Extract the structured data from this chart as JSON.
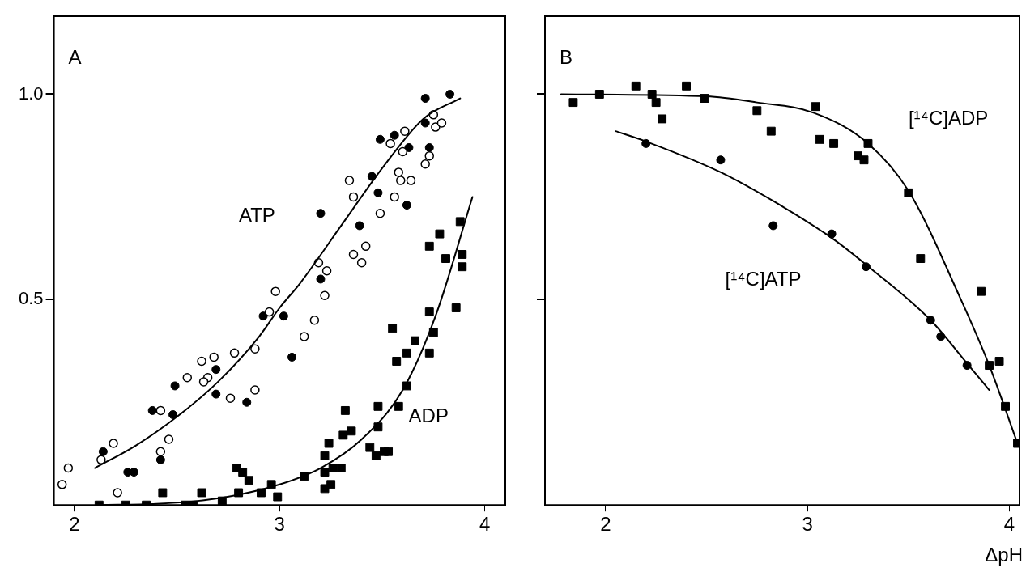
{
  "chart_data": [
    {
      "type": "scatter",
      "title": "A",
      "xlim": [
        1.9,
        4.1
      ],
      "xticks": [
        2,
        3,
        4
      ],
      "ylim": [
        0,
        1.19
      ],
      "yticks": [
        {
          "value": 0.5,
          "label": "0.5"
        },
        {
          "value": 1,
          "label": "1.0"
        }
      ],
      "grid": false,
      "legend": false,
      "annotations": [
        "ATP",
        "ADP"
      ],
      "series": [
        {
          "type": "scatter",
          "marker": "circle",
          "color": "#000000",
          "x": [
            1.97,
            1.94,
            2.13,
            2.19,
            2.21,
            2.42,
            2.42,
            2.46,
            2.55,
            2.62,
            2.65,
            2.63,
            2.68,
            2.78,
            2.76,
            2.88,
            2.88,
            2.95,
            2.98,
            3.12,
            3.17,
            3.75,
            3.76,
            3.79,
            3.73,
            3.71,
            3.61,
            3.54,
            3.6,
            3.58,
            3.59,
            3.64,
            3.56,
            3.34,
            3.36,
            3.49,
            3.36,
            3.4,
            3.42,
            3.19,
            3.23,
            3.22
          ],
          "values": [
            0.09,
            0.05,
            0.11,
            0.15,
            0.03,
            0.23,
            0.13,
            0.16,
            0.31,
            0.35,
            0.31,
            0.3,
            0.36,
            0.37,
            0.26,
            0.38,
            0.28,
            0.47,
            0.52,
            0.41,
            0.45,
            0.95,
            0.92,
            0.93,
            0.85,
            0.83,
            0.91,
            0.88,
            0.86,
            0.81,
            0.79,
            0.79,
            0.75,
            0.79,
            0.75,
            0.71,
            0.61,
            0.59,
            0.63,
            0.59,
            0.57,
            0.51
          ]
        },
        {
          "type": "scatter",
          "marker": "circle",
          "color": "#000000",
          "x": [
            2.14,
            2.26,
            2.29,
            2.38,
            2.42,
            2.49,
            2.48,
            2.69,
            2.69,
            2.84,
            2.92,
            3.02,
            3.06,
            3.71,
            3.83,
            3.71,
            3.73,
            3.56,
            3.49,
            3.63,
            3.45,
            3.48,
            3.62,
            3.2,
            3.39,
            3.2
          ],
          "values": [
            0.13,
            0.08,
            0.08,
            0.23,
            0.11,
            0.29,
            0.22,
            0.33,
            0.27,
            0.25,
            0.46,
            0.46,
            0.36,
            0.99,
            1.0,
            0.93,
            0.87,
            0.9,
            0.89,
            0.87,
            0.8,
            0.76,
            0.73,
            0.71,
            0.68,
            0.55
          ]
        },
        {
          "type": "scatter",
          "marker": "square",
          "color": "#000000",
          "x": [
            2.12,
            2.25,
            2.35,
            2.43,
            2.54,
            2.58,
            2.62,
            2.72,
            2.79,
            2.82,
            2.85,
            2.8,
            2.91,
            2.96,
            2.99,
            3.12,
            3.22,
            3.25,
            3.22,
            3.26,
            3.3,
            3.22,
            3.24,
            3.31,
            3.35,
            3.32,
            3.44,
            3.47,
            3.51,
            3.53,
            3.48,
            3.48,
            3.58,
            3.62,
            3.57,
            3.62,
            3.73,
            3.66,
            3.75,
            3.55,
            3.73,
            3.86,
            3.73,
            3.81,
            3.89,
            3.89,
            3.78,
            3.88
          ],
          "values": [
            0.0,
            0.0,
            0.0,
            0.03,
            0.0,
            0.0,
            0.03,
            0.01,
            0.09,
            0.08,
            0.06,
            0.03,
            0.03,
            0.05,
            0.02,
            0.07,
            0.04,
            0.05,
            0.08,
            0.09,
            0.09,
            0.12,
            0.15,
            0.17,
            0.18,
            0.23,
            0.14,
            0.12,
            0.13,
            0.13,
            0.19,
            0.24,
            0.24,
            0.29,
            0.35,
            0.37,
            0.37,
            0.4,
            0.42,
            0.43,
            0.47,
            0.48,
            0.63,
            0.6,
            0.61,
            0.58,
            0.66,
            0.69
          ]
        },
        {
          "type": "line",
          "marker": "none",
          "color": "#000000",
          "x": [
            2.1,
            2.3,
            2.5,
            2.7,
            2.9,
            3.0,
            3.1,
            3.3,
            3.5,
            3.7,
            3.88
          ],
          "values": [
            0.09,
            0.145,
            0.215,
            0.3,
            0.41,
            0.48,
            0.54,
            0.68,
            0.82,
            0.94,
            0.99
          ]
        },
        {
          "type": "line",
          "marker": "none",
          "color": "#000000",
          "x": [
            2.12,
            2.4,
            2.6,
            2.8,
            3.0,
            3.2,
            3.4,
            3.6,
            3.76,
            3.94
          ],
          "values": [
            0.0,
            0.003,
            0.01,
            0.025,
            0.05,
            0.09,
            0.16,
            0.28,
            0.46,
            0.75
          ]
        }
      ]
    },
    {
      "type": "scatter",
      "title": "B",
      "xlabel": "ΔpH",
      "xlim": [
        1.7,
        4.05
      ],
      "xticks": [
        2,
        3,
        4
      ],
      "ylim": [
        0,
        1.19
      ],
      "yticks": [
        0.5,
        1
      ],
      "tick_labels": "x",
      "grid": false,
      "legend": false,
      "annotations": [
        "[¹⁴C]ADP",
        "[¹⁴C]ATP"
      ],
      "series": [
        {
          "type": "scatter",
          "marker": "square",
          "color": "#000000",
          "x": [
            1.84,
            1.97,
            2.15,
            2.23,
            2.25,
            2.28,
            2.4,
            2.49,
            2.75,
            2.82,
            3.04,
            3.06,
            3.13,
            3.25,
            3.28,
            3.3,
            3.5,
            3.56,
            3.86,
            3.9,
            3.95,
            3.98,
            4.04
          ],
          "values": [
            0.98,
            1.0,
            1.02,
            1.0,
            0.98,
            0.94,
            1.02,
            0.99,
            0.96,
            0.91,
            0.97,
            0.89,
            0.88,
            0.85,
            0.84,
            0.88,
            0.76,
            0.6,
            0.52,
            0.34,
            0.35,
            0.24,
            0.15
          ]
        },
        {
          "type": "scatter",
          "marker": "circle",
          "color": "#000000",
          "x": [
            2.2,
            2.57,
            2.83,
            3.12,
            3.29,
            3.61,
            3.66,
            3.79
          ],
          "values": [
            0.88,
            0.84,
            0.68,
            0.66,
            0.58,
            0.45,
            0.41,
            0.34
          ]
        },
        {
          "type": "line",
          "marker": "none",
          "color": "#000000",
          "x": [
            1.78,
            2.5,
            2.75,
            3.03,
            3.3,
            3.5,
            3.76,
            3.9,
            4.04
          ],
          "values": [
            1.0,
            0.995,
            0.98,
            0.955,
            0.88,
            0.765,
            0.5,
            0.34,
            0.15
          ]
        },
        {
          "type": "line",
          "marker": "none",
          "color": "#000000",
          "x": [
            2.05,
            2.2,
            2.57,
            2.83,
            3.12,
            3.29,
            3.61,
            3.79,
            3.9
          ],
          "values": [
            0.91,
            0.885,
            0.81,
            0.74,
            0.65,
            0.585,
            0.45,
            0.345,
            0.28
          ]
        }
      ]
    }
  ]
}
